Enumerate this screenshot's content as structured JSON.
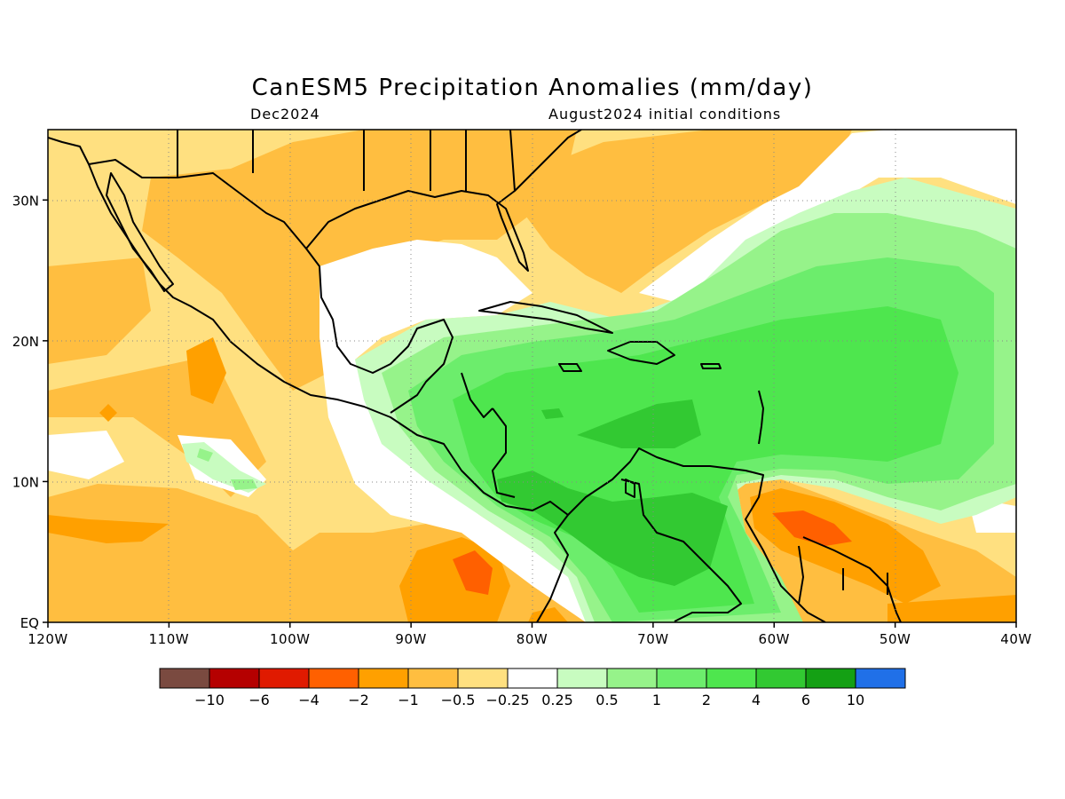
{
  "title": "CanESM5 Precipitation Anomalies (mm/day)",
  "subtitle_left": "Dec2024",
  "subtitle_right": "August2024 initial conditions",
  "map": {
    "lon_range": [
      -120,
      -40
    ],
    "lat_range": [
      0,
      35
    ],
    "lon_ticks": [
      {
        "value": -120,
        "label": "120W"
      },
      {
        "value": -110,
        "label": "110W"
      },
      {
        "value": -100,
        "label": "100W"
      },
      {
        "value": -90,
        "label": "90W"
      },
      {
        "value": -80,
        "label": "80W"
      },
      {
        "value": -70,
        "label": "70W"
      },
      {
        "value": -60,
        "label": "60W"
      },
      {
        "value": -50,
        "label": "50W"
      },
      {
        "value": -40,
        "label": "40W"
      }
    ],
    "lat_ticks": [
      {
        "value": 0,
        "label": "EQ"
      },
      {
        "value": 10,
        "label": "10N"
      },
      {
        "value": 20,
        "label": "20N"
      },
      {
        "value": 30,
        "label": "30N"
      }
    ],
    "gridlines": "dotted"
  },
  "colorbar": {
    "colors": [
      "#7a4a40",
      "#b50000",
      "#e01a00",
      "#ff6000",
      "#ffa000",
      "#ffbe40",
      "#ffe080",
      "#ffffff",
      "#c8fcc0",
      "#96f38a",
      "#6ced6c",
      "#4ee64e",
      "#32c932",
      "#14a014",
      "#2070e8"
    ],
    "labels": [
      "−10",
      "−6",
      "−4",
      "−2",
      "−1",
      "−0.5",
      "−0.25",
      "0.25",
      "0.5",
      "1",
      "2",
      "4",
      "6",
      "10"
    ]
  }
}
